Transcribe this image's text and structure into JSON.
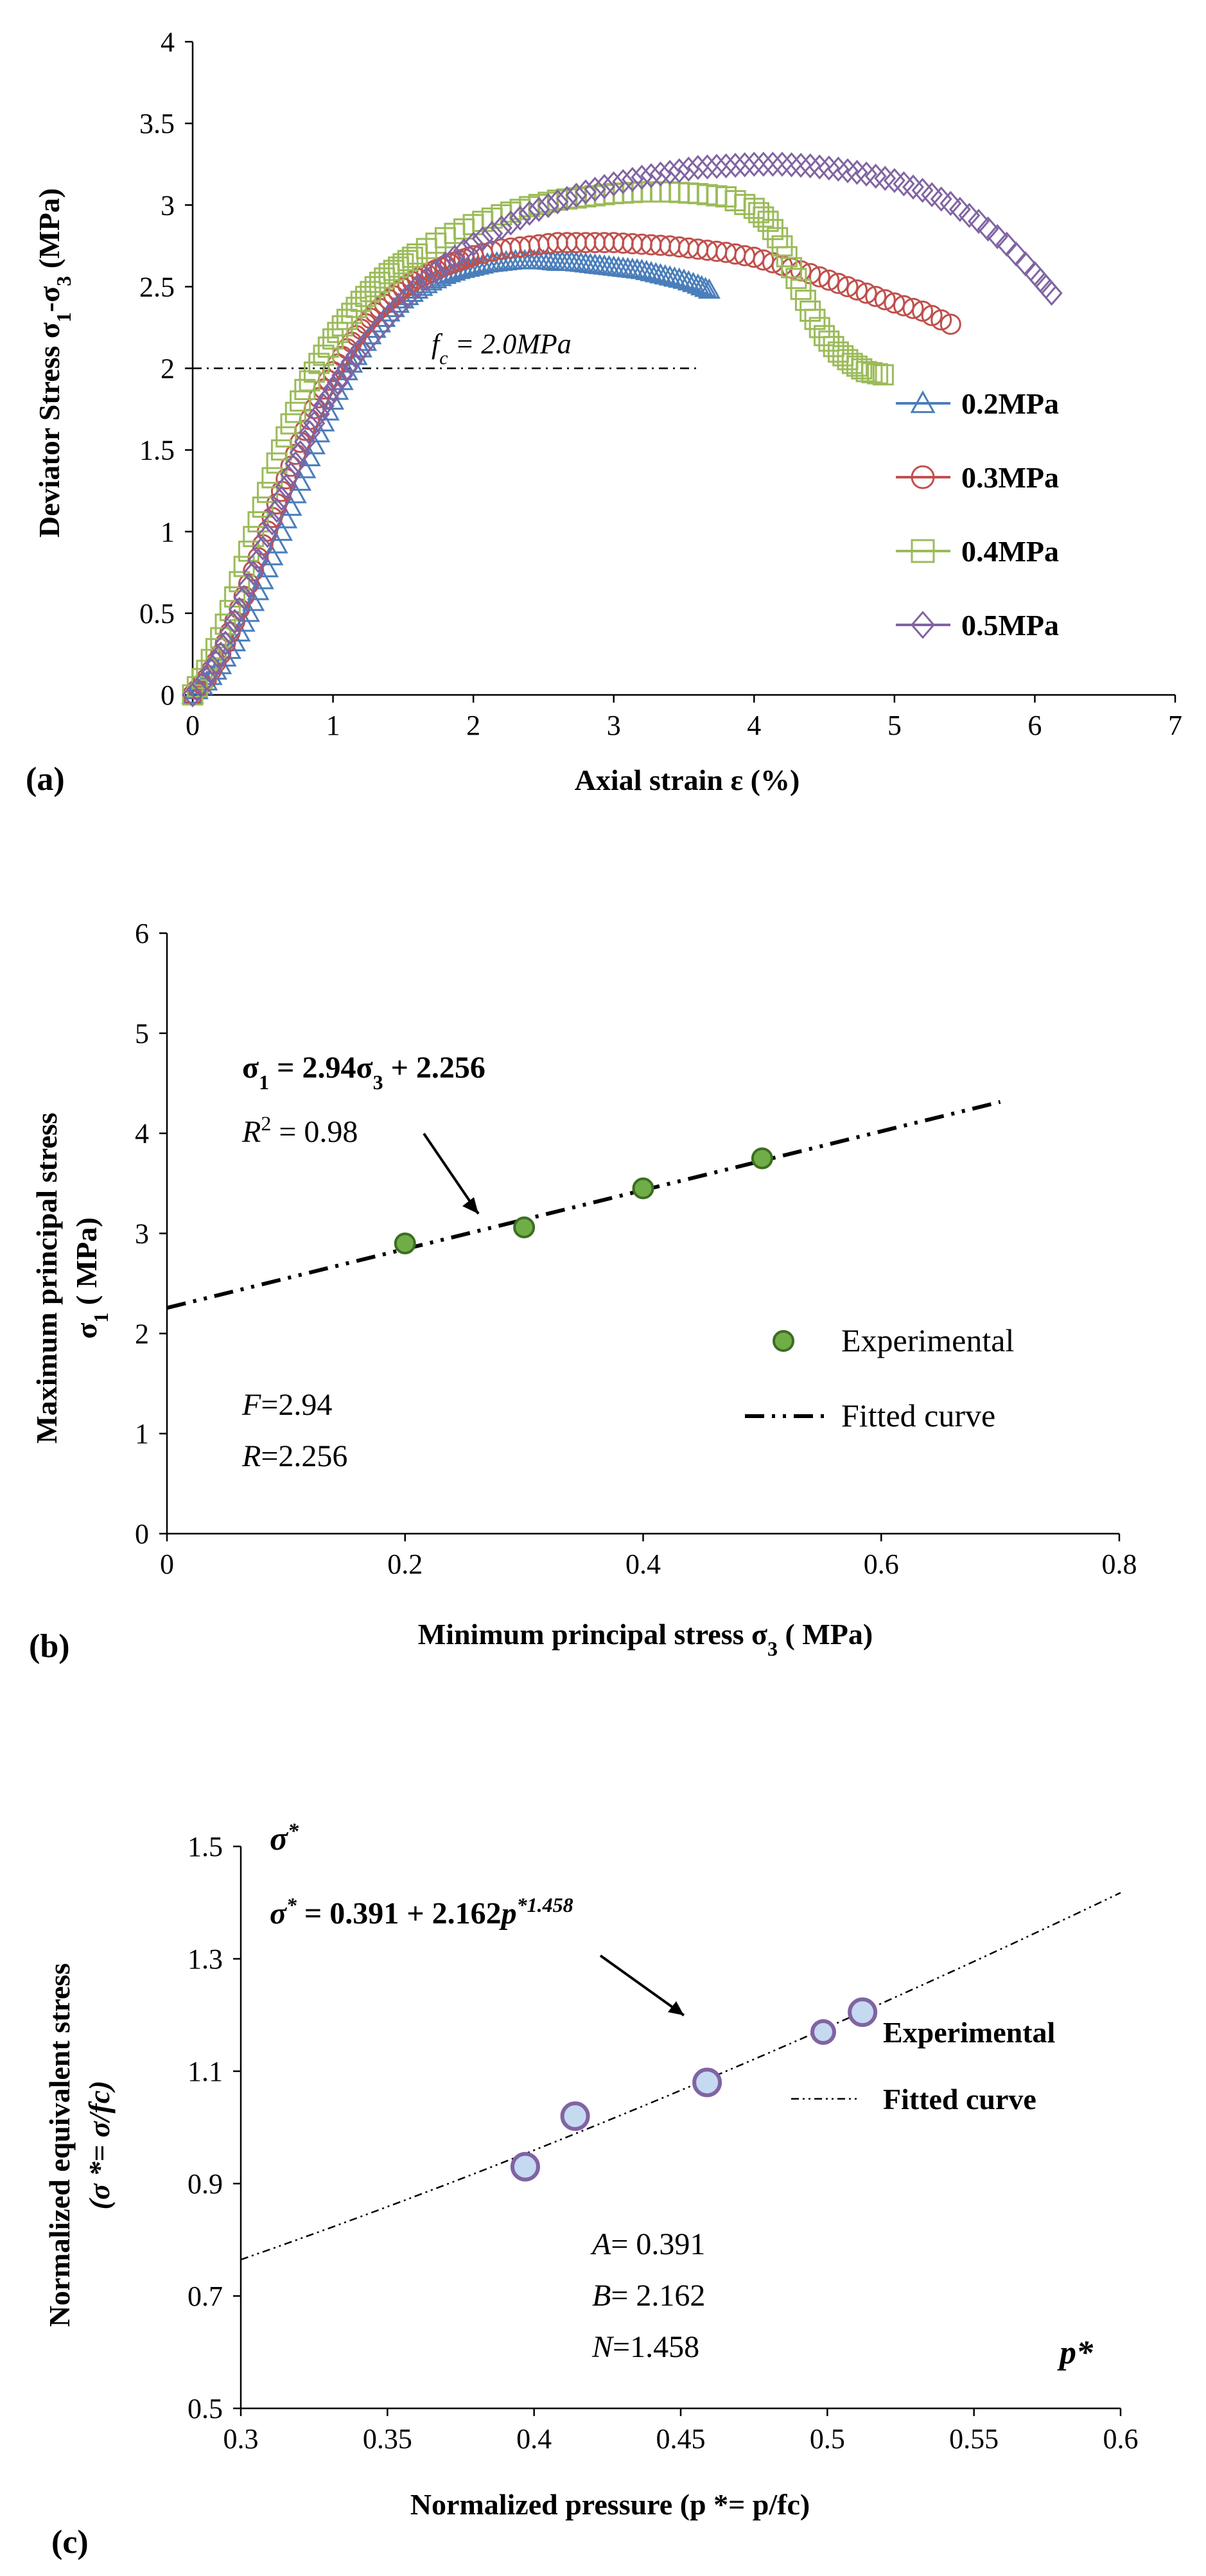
{
  "chart_data": [
    {
      "panel": "(a)",
      "type": "line",
      "xlabel": "Axial strain  ε (%)",
      "ylabel": "Deviator Stress  σ1-σ3 (MPa)",
      "ylabel_parts": {
        "pre": "Deviator Stress  σ",
        "s1": "1",
        "mid": "-σ",
        "s3": "3",
        "post": " (MPa)"
      },
      "xlim": [
        0,
        7
      ],
      "ylim": [
        0,
        4
      ],
      "xticks": [
        "0",
        "1",
        "2",
        "3",
        "4",
        "5",
        "6",
        "7"
      ],
      "yticks": [
        "0",
        "0.5",
        "1",
        "1.5",
        "2",
        "2.5",
        "3",
        "3.5",
        "4"
      ],
      "reference_line": {
        "y": 2.0,
        "x_range": [
          0,
          3.6
        ],
        "label": "fc = 2.0MPa",
        "label_parts": {
          "f": "f",
          "sub": "c",
          "rest": " = 2.0MPa"
        }
      },
      "series": [
        {
          "name": "0.2MPa",
          "color": "#4A7EBB",
          "marker": "triangle",
          "x": [
            0,
            0.1,
            0.2,
            0.3,
            0.4,
            0.5,
            0.6,
            0.7,
            0.8,
            0.9,
            1.0,
            1.1,
            1.2,
            1.3,
            1.4,
            1.5,
            1.6,
            1.7,
            1.8,
            1.9,
            2.0,
            2.1,
            2.2,
            2.3,
            2.4,
            2.5,
            2.6,
            2.7,
            2.8,
            2.9,
            3.0,
            3.1,
            3.2,
            3.3,
            3.4,
            3.5,
            3.6,
            3.68
          ],
          "y": [
            0,
            0.08,
            0.18,
            0.32,
            0.5,
            0.7,
            0.92,
            1.15,
            1.38,
            1.6,
            1.8,
            1.98,
            2.12,
            2.24,
            2.34,
            2.42,
            2.48,
            2.53,
            2.57,
            2.6,
            2.62,
            2.64,
            2.65,
            2.66,
            2.66,
            2.66,
            2.65,
            2.65,
            2.64,
            2.63,
            2.62,
            2.61,
            2.6,
            2.58,
            2.56,
            2.54,
            2.51,
            2.48
          ]
        },
        {
          "name": "0.3MPa",
          "color": "#C0504D",
          "marker": "circle",
          "x": [
            0,
            0.1,
            0.2,
            0.3,
            0.4,
            0.5,
            0.6,
            0.7,
            0.8,
            0.9,
            1.0,
            1.1,
            1.2,
            1.3,
            1.4,
            1.5,
            1.6,
            1.7,
            1.8,
            1.9,
            2.0,
            2.2,
            2.4,
            2.6,
            2.8,
            3.0,
            3.2,
            3.4,
            3.6,
            3.8,
            4.0,
            4.2,
            4.4,
            4.6,
            4.8,
            5.0,
            5.2,
            5.4
          ],
          "y": [
            0,
            0.1,
            0.25,
            0.45,
            0.68,
            0.92,
            1.17,
            1.4,
            1.62,
            1.82,
            1.98,
            2.12,
            2.24,
            2.34,
            2.42,
            2.49,
            2.55,
            2.59,
            2.63,
            2.66,
            2.69,
            2.73,
            2.75,
            2.77,
            2.77,
            2.77,
            2.76,
            2.75,
            2.73,
            2.71,
            2.68,
            2.63,
            2.58,
            2.52,
            2.46,
            2.4,
            2.35,
            2.27
          ]
        },
        {
          "name": "0.4MPa",
          "color": "#9BBB59",
          "marker": "square",
          "x": [
            0,
            0.1,
            0.2,
            0.3,
            0.4,
            0.5,
            0.6,
            0.7,
            0.8,
            0.9,
            1.0,
            1.1,
            1.2,
            1.3,
            1.4,
            1.5,
            1.6,
            1.8,
            2.0,
            2.2,
            2.4,
            2.6,
            2.8,
            3.0,
            3.2,
            3.4,
            3.6,
            3.8,
            4.0,
            4.1,
            4.2,
            4.3,
            4.4,
            4.5,
            4.6,
            4.7,
            4.8,
            4.92
          ],
          "y": [
            0,
            0.15,
            0.35,
            0.6,
            0.88,
            1.15,
            1.42,
            1.66,
            1.87,
            2.03,
            2.18,
            2.3,
            2.41,
            2.5,
            2.58,
            2.64,
            2.7,
            2.8,
            2.88,
            2.94,
            2.99,
            3.03,
            3.05,
            3.07,
            3.08,
            3.08,
            3.07,
            3.05,
            2.98,
            2.9,
            2.75,
            2.55,
            2.35,
            2.2,
            2.1,
            2.03,
            1.98,
            1.96
          ]
        },
        {
          "name": "0.5MPa",
          "color": "#8064A2",
          "marker": "diamond",
          "x": [
            0,
            0.1,
            0.2,
            0.3,
            0.4,
            0.5,
            0.6,
            0.7,
            0.8,
            0.9,
            1.0,
            1.1,
            1.2,
            1.4,
            1.6,
            1.8,
            2.0,
            2.2,
            2.4,
            2.6,
            2.8,
            3.0,
            3.2,
            3.4,
            3.6,
            3.8,
            4.0,
            4.2,
            4.4,
            4.6,
            4.8,
            5.0,
            5.2,
            5.4,
            5.6,
            5.8,
            6.0,
            6.12
          ],
          "y": [
            0,
            0.1,
            0.25,
            0.45,
            0.67,
            0.9,
            1.13,
            1.35,
            1.55,
            1.72,
            1.87,
            2.0,
            2.12,
            2.32,
            2.5,
            2.64,
            2.76,
            2.86,
            2.95,
            3.02,
            3.08,
            3.13,
            3.17,
            3.2,
            3.23,
            3.24,
            3.25,
            3.25,
            3.24,
            3.22,
            3.19,
            3.15,
            3.09,
            3.01,
            2.9,
            2.76,
            2.58,
            2.46
          ]
        }
      ]
    },
    {
      "panel": "(b)",
      "type": "scatter",
      "xlabel": "Minimum principal stress  σ3 ( MPa)",
      "xlabel_parts": {
        "pre": "Minimum principal stress  σ",
        "sub": "3",
        "post": " ( MPa)"
      },
      "ylabel_line1": "Maximum principal stress",
      "ylabel_line2": "σ1 ( MPa)",
      "ylabel_line2_parts": {
        "pre": "σ",
        "sub": "1",
        "post": " ( MPa)"
      },
      "xlim": [
        0,
        0.8
      ],
      "ylim": [
        0,
        6
      ],
      "xticks": [
        "0",
        "0.2",
        "0.4",
        "0.6",
        "0.8"
      ],
      "yticks": [
        "0",
        "1",
        "2",
        "3",
        "4",
        "5",
        "6"
      ],
      "experimental": {
        "name": "Experimental",
        "color": "#70AD47",
        "x": [
          0.2,
          0.3,
          0.4,
          0.5
        ],
        "y": [
          2.9,
          3.06,
          3.45,
          3.75
        ]
      },
      "fit": {
        "name": "Fitted curve",
        "slope": 2.94,
        "intercept": 2.256,
        "x_range": [
          0,
          0.7
        ]
      },
      "equation_parts": {
        "a": "σ",
        "a_sub": "1",
        "mid": " = 2.94",
        "b": "σ",
        "b_sub": "3",
        "end": " + 2.256"
      },
      "equation": "σ1 = 2.94σ3 + 2.256",
      "r2": "R2 = 0.98",
      "r2_parts": {
        "r": "R",
        "sup": "2",
        "rest": " = 0.98"
      },
      "params": [
        {
          "name": "F",
          "value": "=2.94"
        },
        {
          "name": "R",
          "value": "=2.256"
        }
      ]
    },
    {
      "panel": "(c)",
      "type": "scatter",
      "xlabel": "Normalized pressure  (p *= p/fc)",
      "ylabel_line1": "Normalized equivalent  stress",
      "ylabel_line2": "(σ *= σ/fc)",
      "xlim": [
        0.3,
        0.6
      ],
      "ylim": [
        0.5,
        1.5
      ],
      "xticks": [
        "0.3",
        "0.35",
        "0.4",
        "0.45",
        "0.5",
        "0.55",
        "0.6"
      ],
      "yticks": [
        "0.5",
        "0.7",
        "0.9",
        "1.1",
        "1.3",
        "1.5"
      ],
      "experimental": {
        "name": "Experimental",
        "color": "#8064A2",
        "fill": "#C5D9F1",
        "x": [
          0.397,
          0.414,
          0.459,
          0.512
        ],
        "y": [
          0.93,
          1.02,
          1.08,
          1.205
        ]
      },
      "fit": {
        "name": "Fitted curve",
        "A": 0.391,
        "B": 2.162,
        "N": 1.458,
        "x_range": [
          0.3,
          0.6
        ]
      },
      "equation": "σ* = 0.391 + 2.162p*1.458",
      "equation_parts": {
        "lhs": "σ",
        "star": "*",
        "mid": " = 0.391 + 2.162",
        "p": "p",
        "exp": "*1.458"
      },
      "params": [
        {
          "name": "A",
          "value": "= 0.391"
        },
        {
          "name": "B",
          "value": "= 2.162"
        },
        {
          "name": "N",
          "value": "=1.458"
        }
      ],
      "axis_tags": {
        "y": "σ",
        "y_sup": "*",
        "x": "p*"
      }
    }
  ]
}
